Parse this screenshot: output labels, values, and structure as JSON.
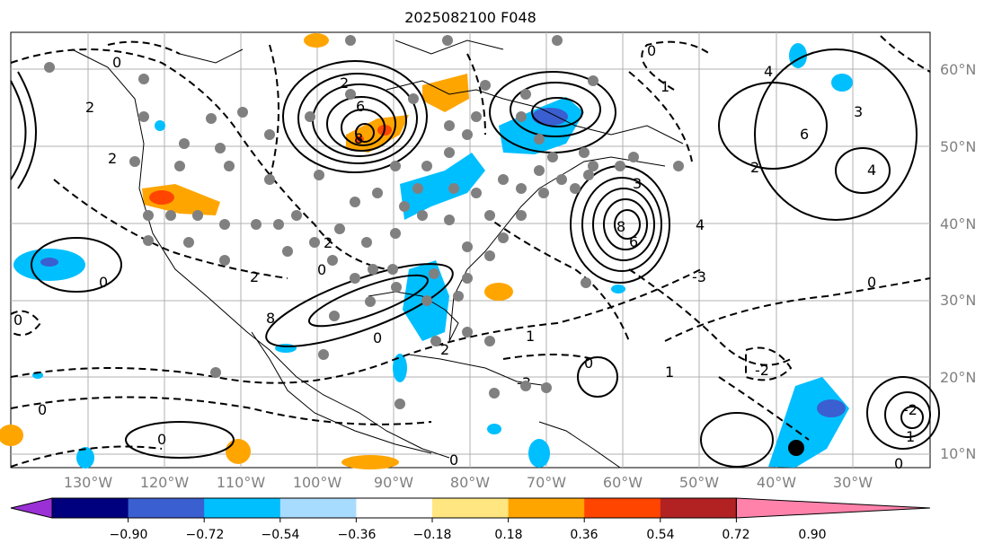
{
  "title": "2025082100 F048",
  "latitude_labels": [
    "60°N",
    "50°N",
    "40°N",
    "30°N",
    "20°N",
    "10°N"
  ],
  "longitude_labels": [
    "130°W",
    "120°W",
    "110°W",
    "100°W",
    "90°W",
    "80°W",
    "70°W",
    "60°W",
    "50°W",
    "40°W",
    "30°W"
  ],
  "contour_labels": [
    "0",
    "1",
    "2",
    "3",
    "4",
    "6",
    "8",
    "-1",
    "-2",
    "-3"
  ],
  "colorbar": {
    "tick_labels": [
      "−0.90",
      "−0.72",
      "−0.54",
      "−0.36",
      "−0.18",
      "0.18",
      "0.36",
      "0.54",
      "0.72",
      "0.90"
    ],
    "colors": [
      "#9b30d6",
      "#00007f",
      "#3a5fd0",
      "#00bfff",
      "#a8dcff",
      "#ffffff",
      "#ffe680",
      "#ffa500",
      "#ff4500",
      "#b22222",
      "#ff82ab"
    ]
  }
}
